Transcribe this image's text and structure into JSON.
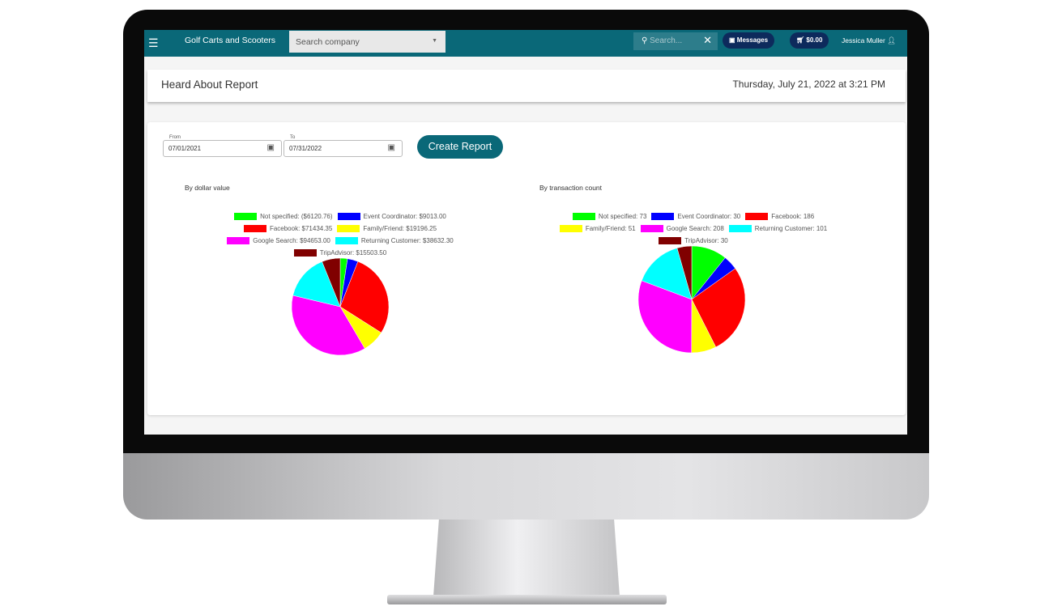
{
  "topbar": {
    "menu_icon": "hamburger-icon",
    "brand": "Golf Carts and Scooters",
    "company_placeholder": "Search company",
    "search_placeholder": "Search...",
    "messages": "Messages",
    "cart": "$0.00",
    "user": "Jessica Muller"
  },
  "report": {
    "title": "Heard About Report",
    "datetime": "Thursday, July 21, 2022 at 3:21 PM"
  },
  "filters": {
    "from_label": "From",
    "from_value": "07/01/2021",
    "to_label": "To",
    "to_value": "07/31/2022",
    "create_label": "Create Report"
  },
  "chart_data": [
    {
      "type": "pie",
      "title": "By dollar value",
      "legend": "top",
      "categories": [
        "Not specified",
        "Event Coordinator",
        "Facebook",
        "Family/Friend",
        "Google Search",
        "Returning Customer",
        "TripAdvisor"
      ],
      "values": [
        -6120.76,
        9013.0,
        71434.35,
        19196.25,
        94653.0,
        38632.3,
        15503.5
      ],
      "labels": [
        "Not specified: ($6120.76)",
        "Event Coordinator: $9013.00",
        "Facebook: $71434.35",
        "Family/Friend: $19196.25",
        "Google Search: $94653.00",
        "Returning Customer: $38632.30",
        "TripAdvisor: $15503.50"
      ],
      "colors": [
        "#00ff00",
        "#0000ff",
        "#ff0000",
        "#ffff00",
        "#ff00ff",
        "#00ffff",
        "#800000"
      ]
    },
    {
      "type": "pie",
      "title": "By transaction count",
      "legend": "top",
      "categories": [
        "Not specified",
        "Event Coordinator",
        "Facebook",
        "Family/Friend",
        "Google Search",
        "Returning Customer",
        "TripAdvisor"
      ],
      "values": [
        73,
        30,
        186,
        51,
        208,
        101,
        30
      ],
      "labels": [
        "Not specified: 73",
        "Event Coordinator: 30",
        "Facebook: 186",
        "Family/Friend: 51",
        "Google Search: 208",
        "Returning Customer: 101",
        "TripAdvisor: 30"
      ],
      "colors": [
        "#00ff00",
        "#0000ff",
        "#ff0000",
        "#ffff00",
        "#ff00ff",
        "#00ffff",
        "#800000"
      ]
    }
  ]
}
